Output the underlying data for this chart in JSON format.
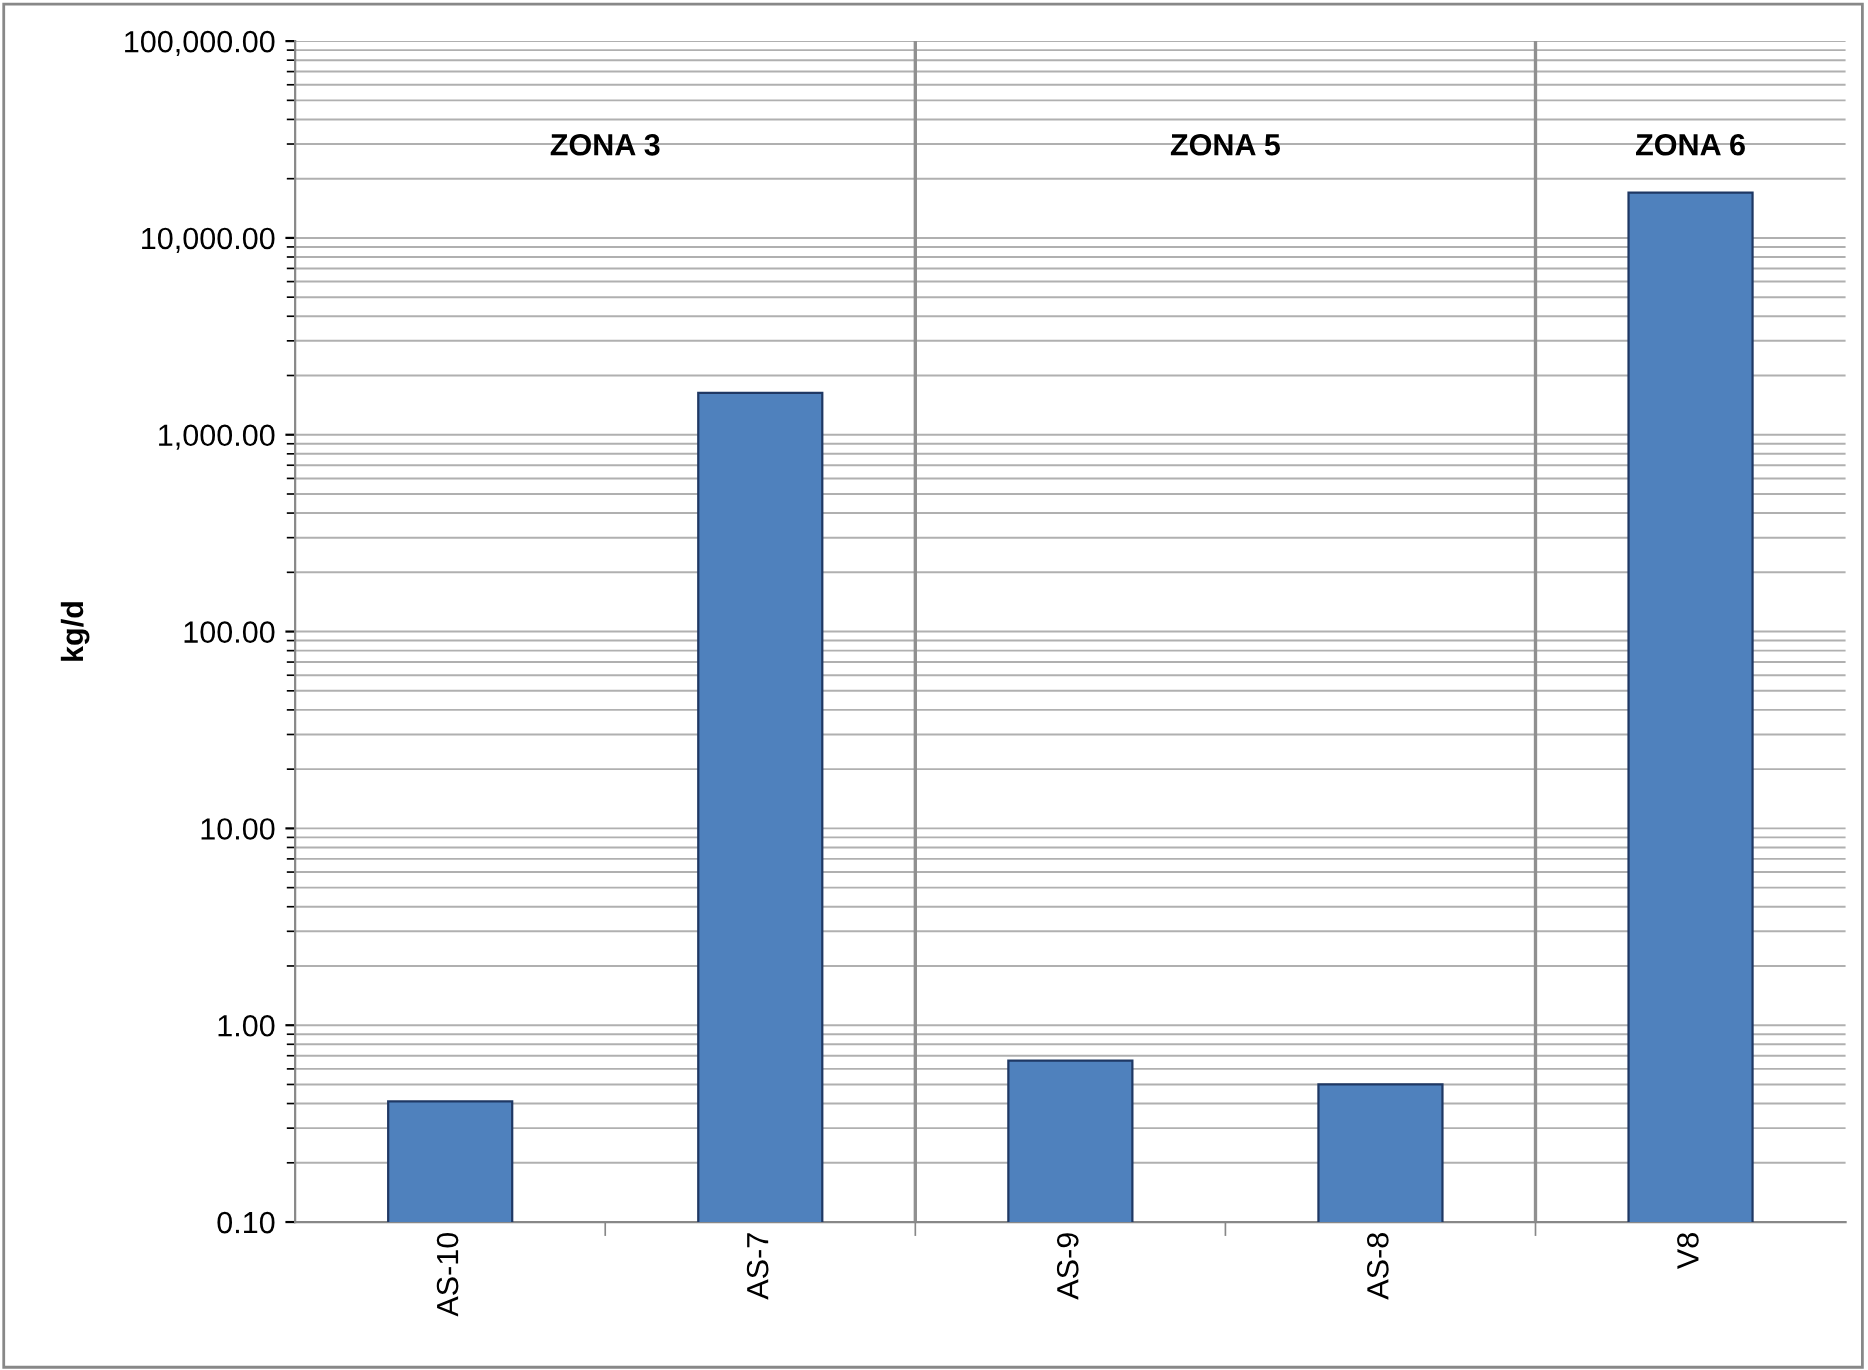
{
  "chart_data": {
    "type": "bar",
    "ylabel": "kg/d",
    "categories": [
      "AS-10",
      "AS-7",
      "AS-9",
      "AS-8",
      "V8"
    ],
    "values": [
      0.41,
      1630,
      0.66,
      0.5,
      17000
    ],
    "color": "#4f81bd",
    "log": "y",
    "ylim": [
      0.1,
      100000
    ],
    "yticks": [
      {
        "value": 0.1,
        "label": "0.10"
      },
      {
        "value": 1,
        "label": "1.00"
      },
      {
        "value": 10,
        "label": "10.00"
      },
      {
        "value": 100,
        "label": "100.00"
      },
      {
        "value": 1000,
        "label": "1,000.00"
      },
      {
        "value": 10000,
        "label": "10,000.00"
      },
      {
        "value": 100000,
        "label": "100,000.00"
      }
    ],
    "grid": "y",
    "annotations": [
      "ZONA 3",
      "ZONA 5",
      "ZONA 6"
    ]
  }
}
